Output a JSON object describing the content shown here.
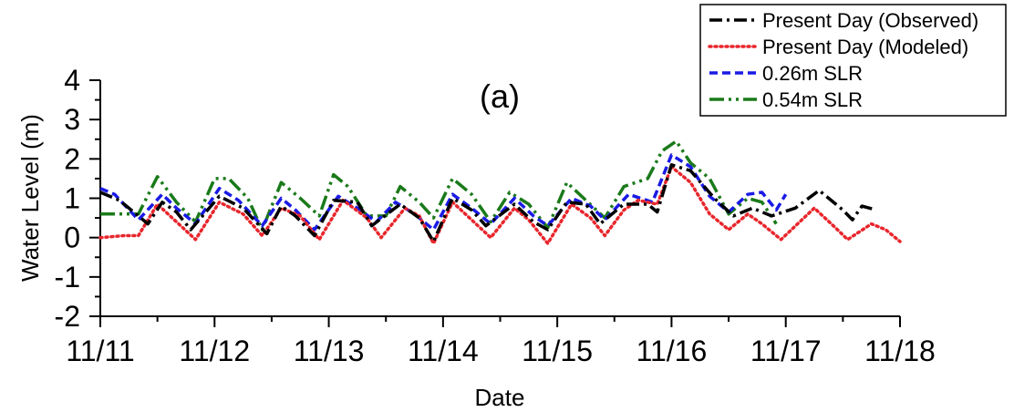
{
  "chart_data": {
    "type": "line",
    "panel_label": "(a)",
    "xlabel": "Date",
    "ylabel": "Water Level (m)",
    "xlim": [
      "11/11",
      "11/18"
    ],
    "ylim": [
      -2,
      4
    ],
    "x_ticks": [
      "11/11",
      "11/12",
      "11/13",
      "11/14",
      "11/15",
      "11/16",
      "11/17",
      "11/18"
    ],
    "y_ticks": [
      "-2",
      "-1",
      "0",
      "1",
      "2",
      "3",
      "4"
    ],
    "grid": false,
    "legend_position": "top-right",
    "series": [
      {
        "name": "Present Day (Observed)",
        "color": "#000000",
        "style": "dash-dot",
        "points": [
          [
            "11/11 00:00",
            1.15
          ],
          [
            "11/11 04:00",
            0.95
          ],
          [
            "11/11 08:00",
            0.55
          ],
          [
            "11/11 10:00",
            0.35
          ],
          [
            "11/11 13:00",
            0.9
          ],
          [
            "11/11 16:00",
            0.65
          ],
          [
            "11/11 19:00",
            0.2
          ],
          [
            "11/12 01:00",
            1.05
          ],
          [
            "11/12 06:00",
            0.75
          ],
          [
            "11/12 11:00",
            0.1
          ],
          [
            "11/12 14:00",
            0.8
          ],
          [
            "11/12 17:00",
            0.55
          ],
          [
            "11/12 21:00",
            0.05
          ],
          [
            "11/13 01:00",
            0.95
          ],
          [
            "11/13 06:00",
            0.9
          ],
          [
            "11/13 09:00",
            0.3
          ],
          [
            "11/13 15:00",
            0.85
          ],
          [
            "11/13 19:00",
            0.5
          ],
          [
            "11/13 22:00",
            -0.1
          ],
          [
            "11/14 02:00",
            1.0
          ],
          [
            "11/14 06:00",
            0.7
          ],
          [
            "11/14 09:00",
            0.3
          ],
          [
            "11/14 15:00",
            0.85
          ],
          [
            "11/14 19:00",
            0.4
          ],
          [
            "11/14 22:00",
            0.2
          ],
          [
            "11/15 02:00",
            0.9
          ],
          [
            "11/15 06:00",
            0.85
          ],
          [
            "11/15 09:00",
            0.35
          ],
          [
            "11/15 14:00",
            0.85
          ],
          [
            "11/15 19:00",
            0.85
          ],
          [
            "11/15 21:00",
            0.65
          ],
          [
            "11/16 00:00",
            1.85
          ],
          [
            "11/16 04:00",
            1.7
          ],
          [
            "11/16 09:00",
            1.0
          ],
          [
            "11/16 13:00",
            0.55
          ],
          [
            "11/16 17:00",
            0.75
          ],
          [
            "11/16 21:00",
            0.55
          ],
          [
            "11/17 02:00",
            0.75
          ],
          [
            "11/17 07:00",
            1.2
          ],
          [
            "11/17 12:00",
            0.7
          ],
          [
            "11/17 14:00",
            0.45
          ],
          [
            "11/17 16:00",
            0.8
          ],
          [
            "11/17 19:00",
            0.7
          ]
        ]
      },
      {
        "name": "Present Day (Modeled)",
        "color": "#e8262c",
        "style": "dotted",
        "points": [
          [
            "11/11 00:00",
            0.0
          ],
          [
            "11/11 05:00",
            0.05
          ],
          [
            "11/11 08:00",
            0.05
          ],
          [
            "11/11 12:00",
            0.85
          ],
          [
            "11/11 16:00",
            0.4
          ],
          [
            "11/11 20:00",
            -0.05
          ],
          [
            "11/12 01:00",
            0.9
          ],
          [
            "11/12 06:00",
            0.6
          ],
          [
            "11/12 10:00",
            0.05
          ],
          [
            "11/12 14:00",
            0.75
          ],
          [
            "11/12 18:00",
            0.55
          ],
          [
            "11/12 22:00",
            -0.05
          ],
          [
            "11/13 03:00",
            0.95
          ],
          [
            "11/13 08:00",
            0.5
          ],
          [
            "11/13 11:00",
            0.0
          ],
          [
            "11/13 16:00",
            0.75
          ],
          [
            "11/13 19:00",
            0.55
          ],
          [
            "11/13 22:00",
            -0.15
          ],
          [
            "11/14 02:00",
            0.9
          ],
          [
            "11/14 06:00",
            0.45
          ],
          [
            "11/14 10:00",
            0.0
          ],
          [
            "11/14 15:00",
            0.75
          ],
          [
            "11/14 18:00",
            0.45
          ],
          [
            "11/14 22:00",
            -0.15
          ],
          [
            "11/15 03:00",
            0.85
          ],
          [
            "11/15 07:00",
            0.5
          ],
          [
            "11/15 10:00",
            0.05
          ],
          [
            "11/15 14:00",
            0.7
          ],
          [
            "11/15 17:00",
            0.95
          ],
          [
            "11/15 21:00",
            0.85
          ],
          [
            "11/16 00:00",
            1.8
          ],
          [
            "11/16 04:00",
            1.4
          ],
          [
            "11/16 08:00",
            0.6
          ],
          [
            "11/16 12:00",
            0.2
          ],
          [
            "11/16 16:00",
            0.6
          ],
          [
            "11/16 19:00",
            0.35
          ],
          [
            "11/16 23:00",
            -0.05
          ],
          [
            "11/17 06:00",
            0.75
          ],
          [
            "11/17 10:00",
            0.3
          ],
          [
            "11/17 13:00",
            -0.05
          ],
          [
            "11/17 18:00",
            0.35
          ],
          [
            "11/17 21:00",
            0.2
          ],
          [
            "11/18 00:00",
            -0.1
          ]
        ]
      },
      {
        "name": "0.26m SLR",
        "color": "#1a1ae6",
        "style": "dashed",
        "points": [
          [
            "11/11 00:00",
            1.25
          ],
          [
            "11/11 03:00",
            1.1
          ],
          [
            "11/11 08:00",
            0.45
          ],
          [
            "11/11 13:00",
            1.1
          ],
          [
            "11/11 16:00",
            0.75
          ],
          [
            "11/11 20:00",
            0.35
          ],
          [
            "11/12 01:00",
            1.25
          ],
          [
            "11/12 05:00",
            0.95
          ],
          [
            "11/12 10:00",
            0.3
          ],
          [
            "11/12 14:00",
            1.0
          ],
          [
            "11/12 17:00",
            0.7
          ],
          [
            "11/12 21:00",
            0.2
          ],
          [
            "11/13 02:00",
            1.05
          ],
          [
            "11/13 06:00",
            0.75
          ],
          [
            "11/13 10:00",
            0.4
          ],
          [
            "11/13 14:00",
            0.9
          ],
          [
            "11/13 18:00",
            0.6
          ],
          [
            "11/13 22:00",
            0.2
          ],
          [
            "11/14 02:00",
            1.1
          ],
          [
            "11/14 06:00",
            0.75
          ],
          [
            "11/14 10:00",
            0.35
          ],
          [
            "11/14 15:00",
            1.0
          ],
          [
            "11/14 19:00",
            0.55
          ],
          [
            "11/14 22:00",
            0.3
          ],
          [
            "11/15 03:00",
            1.0
          ],
          [
            "11/15 07:00",
            0.8
          ],
          [
            "11/15 10:00",
            0.45
          ],
          [
            "11/15 15:00",
            1.1
          ],
          [
            "11/15 20:00",
            0.9
          ],
          [
            "11/16 00:00",
            2.1
          ],
          [
            "11/16 04:00",
            1.8
          ],
          [
            "11/16 08:00",
            1.05
          ],
          [
            "11/16 12:00",
            0.65
          ],
          [
            "11/16 16:00",
            1.1
          ],
          [
            "11/16 19:00",
            1.15
          ],
          [
            "11/16 22:00",
            0.7
          ],
          [
            "11/17 00:00",
            1.1
          ]
        ]
      },
      {
        "name": "0.54m SLR",
        "color": "#1a7a1a",
        "style": "dash-dot-dot",
        "points": [
          [
            "11/11 00:00",
            0.6
          ],
          [
            "11/11 03:00",
            0.6
          ],
          [
            "11/11 08:00",
            0.6
          ],
          [
            "11/11 12:00",
            1.55
          ],
          [
            "11/11 16:00",
            0.9
          ],
          [
            "11/11 20:00",
            0.4
          ],
          [
            "11/12 00:00",
            1.5
          ],
          [
            "11/12 03:00",
            1.5
          ],
          [
            "11/12 07:00",
            1.0
          ],
          [
            "11/12 10:00",
            0.2
          ],
          [
            "11/12 14:00",
            1.4
          ],
          [
            "11/12 18:00",
            1.0
          ],
          [
            "11/12 22:00",
            0.55
          ],
          [
            "11/13 01:00",
            1.6
          ],
          [
            "11/13 04:00",
            1.3
          ],
          [
            "11/13 08:00",
            0.55
          ],
          [
            "11/13 12:00",
            0.55
          ],
          [
            "11/13 15:00",
            1.3
          ],
          [
            "11/13 19:00",
            0.9
          ],
          [
            "11/13 22:00",
            0.5
          ],
          [
            "11/14 02:00",
            1.5
          ],
          [
            "11/14 06:00",
            1.1
          ],
          [
            "11/14 10:00",
            0.4
          ],
          [
            "11/14 14:00",
            1.15
          ],
          [
            "11/14 18:00",
            0.85
          ],
          [
            "11/14 22:00",
            0.25
          ],
          [
            "11/15 02:00",
            1.4
          ],
          [
            "11/15 06:00",
            0.95
          ],
          [
            "11/15 10:00",
            0.5
          ],
          [
            "11/15 14:00",
            1.3
          ],
          [
            "11/15 19:00",
            1.5
          ],
          [
            "11/15 22:00",
            2.2
          ],
          [
            "11/16 01:00",
            2.45
          ],
          [
            "11/16 04:00",
            1.9
          ],
          [
            "11/16 08:00",
            1.5
          ],
          [
            "11/16 12:00",
            0.6
          ],
          [
            "11/16 16:00",
            1.0
          ],
          [
            "11/16 19:00",
            0.9
          ],
          [
            "11/16 22:00",
            0.35
          ]
        ]
      }
    ]
  }
}
